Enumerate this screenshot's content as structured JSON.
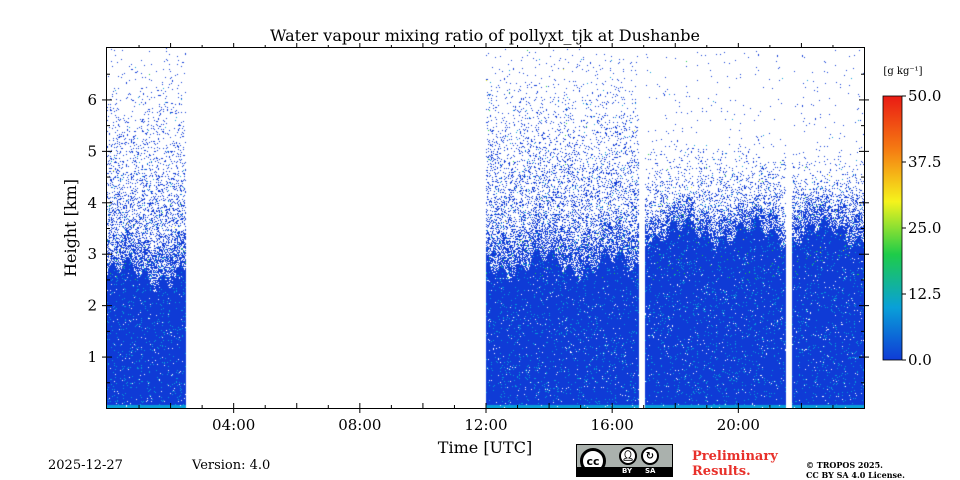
{
  "chart_data": {
    "type": "heatmap",
    "title": "Water vapour mixing ratio of pollyxt_tjk at Dushanbe",
    "xlabel": "Time [UTC]",
    "ylabel": "Height [km]",
    "xlim_hours": [
      0,
      24
    ],
    "ylim_km": [
      0,
      7
    ],
    "x_ticks": [
      {
        "hour": 4,
        "label": "04:00"
      },
      {
        "hour": 8,
        "label": "08:00"
      },
      {
        "hour": 12,
        "label": "12:00"
      },
      {
        "hour": 16,
        "label": "16:00"
      },
      {
        "hour": 20,
        "label": "20:00"
      }
    ],
    "y_ticks": [
      {
        "km": 1,
        "label": "1"
      },
      {
        "km": 2,
        "label": "2"
      },
      {
        "km": 3,
        "label": "3"
      },
      {
        "km": 4,
        "label": "4"
      },
      {
        "km": 5,
        "label": "5"
      },
      {
        "km": 6,
        "label": "6"
      }
    ],
    "colorbar": {
      "unit_label": "[g kg⁻¹]",
      "min": 0,
      "max": 50,
      "ticks": [
        {
          "value": 0,
          "label": "0.0"
        },
        {
          "value": 12.5,
          "label": "12.5"
        },
        {
          "value": 25,
          "label": "25.0"
        },
        {
          "value": 37.5,
          "label": "37.5"
        },
        {
          "value": 50,
          "label": "50.0"
        }
      ],
      "colors": [
        "#0f3bd6",
        "#09a0d8",
        "#1ecc49",
        "#f5f31c",
        "#f57a12",
        "#ea1b14"
      ]
    },
    "data_segments": [
      {
        "start_hour": 0.0,
        "end_hour": 2.5,
        "dense_top_km": 2.6,
        "sparse_top_km": 6.9,
        "noise_start_km": 3.3
      },
      {
        "start_hour": 12.0,
        "end_hour": 16.85,
        "dense_top_km": 2.8,
        "sparse_top_km": 6.9,
        "noise_start_km": 3.5
      },
      {
        "start_hour": 17.05,
        "end_hour": 21.5,
        "dense_top_km": 3.4,
        "sparse_top_km": 5.2,
        "noise_start_km": 3.8
      },
      {
        "start_hour": 21.7,
        "end_hour": 24.0,
        "dense_top_km": 3.4,
        "sparse_top_km": 5.0,
        "noise_start_km": 3.9
      }
    ]
  },
  "footer": {
    "date": "2025-12-27",
    "version": "Version: 4.0",
    "preliminary_line1": "Preliminary",
    "preliminary_line2": "Results.",
    "license_line1": "© TROPOS 2025.",
    "license_line2": "CC BY SA 4.0 License.",
    "cc_badge": {
      "cc": "cc",
      "by": "BY",
      "sa": "SA"
    }
  }
}
